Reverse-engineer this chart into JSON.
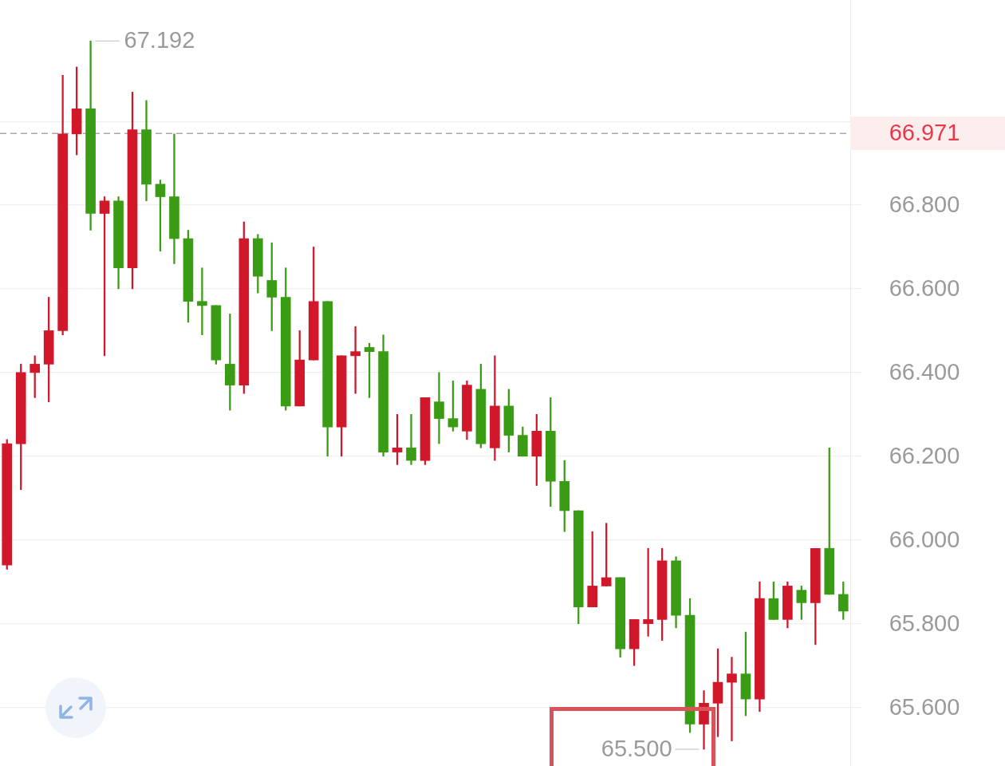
{
  "chart_data": {
    "type": "candlestick",
    "categories": [
      null,
      null,
      null,
      null,
      null,
      null,
      null,
      null,
      null,
      null,
      null,
      null,
      null,
      null,
      null,
      null,
      null,
      null,
      null,
      null,
      null,
      null,
      null,
      null,
      null,
      null,
      null,
      null,
      null,
      null,
      null,
      null,
      null,
      null,
      null,
      null,
      null,
      null,
      null,
      null,
      null,
      null,
      null,
      null,
      null,
      null,
      null,
      null,
      null,
      null,
      null,
      null,
      null,
      null,
      null,
      null,
      null,
      null,
      null,
      null,
      null
    ],
    "ohlc": [
      [
        65.94,
        66.24,
        65.93,
        66.23
      ],
      [
        66.23,
        66.42,
        66.12,
        66.4
      ],
      [
        66.4,
        66.44,
        66.34,
        66.42
      ],
      [
        66.42,
        66.58,
        66.33,
        66.5
      ],
      [
        66.5,
        67.11,
        66.49,
        66.97
      ],
      [
        66.97,
        67.13,
        66.92,
        67.03
      ],
      [
        67.03,
        67.192,
        66.74,
        66.78
      ],
      [
        66.78,
        66.82,
        66.44,
        66.81
      ],
      [
        66.81,
        66.82,
        66.6,
        66.65
      ],
      [
        66.65,
        67.07,
        66.6,
        66.98
      ],
      [
        66.98,
        67.05,
        66.81,
        66.85
      ],
      [
        66.85,
        66.86,
        66.69,
        66.82
      ],
      [
        66.82,
        66.97,
        66.66,
        66.72
      ],
      [
        66.72,
        66.74,
        66.52,
        66.57
      ],
      [
        66.57,
        66.65,
        66.49,
        66.56
      ],
      [
        66.56,
        66.56,
        66.42,
        66.43
      ],
      [
        66.42,
        66.54,
        66.31,
        66.37
      ],
      [
        66.37,
        66.76,
        66.35,
        66.72
      ],
      [
        66.72,
        66.73,
        66.59,
        66.63
      ],
      [
        66.62,
        66.71,
        66.5,
        66.58
      ],
      [
        66.58,
        66.65,
        66.31,
        66.32
      ],
      [
        66.32,
        66.5,
        66.32,
        66.43
      ],
      [
        66.43,
        66.7,
        66.43,
        66.57
      ],
      [
        66.57,
        66.57,
        66.2,
        66.27
      ],
      [
        66.27,
        66.44,
        66.2,
        66.44
      ],
      [
        66.44,
        66.51,
        66.35,
        66.45
      ],
      [
        66.46,
        66.47,
        66.34,
        66.45
      ],
      [
        66.45,
        66.49,
        66.2,
        66.21
      ],
      [
        66.21,
        66.3,
        66.18,
        66.22
      ],
      [
        66.22,
        66.3,
        66.18,
        66.19
      ],
      [
        66.19,
        66.34,
        66.18,
        66.34
      ],
      [
        66.33,
        66.4,
        66.23,
        66.29
      ],
      [
        66.29,
        66.38,
        66.26,
        66.27
      ],
      [
        66.26,
        66.38,
        66.24,
        66.37
      ],
      [
        66.36,
        66.42,
        66.22,
        66.23
      ],
      [
        66.22,
        66.44,
        66.19,
        66.32
      ],
      [
        66.32,
        66.36,
        66.21,
        66.25
      ],
      [
        66.25,
        66.27,
        66.2,
        66.2
      ],
      [
        66.2,
        66.3,
        66.13,
        66.26
      ],
      [
        66.26,
        66.34,
        66.08,
        66.14
      ],
      [
        66.14,
        66.19,
        66.02,
        66.07
      ],
      [
        66.07,
        66.07,
        65.8,
        65.84
      ],
      [
        65.84,
        66.02,
        65.84,
        65.89
      ],
      [
        65.89,
        66.04,
        65.89,
        65.91
      ],
      [
        65.91,
        65.91,
        65.72,
        65.74
      ],
      [
        65.74,
        65.81,
        65.7,
        65.81
      ],
      [
        65.8,
        65.98,
        65.77,
        65.81
      ],
      [
        65.81,
        65.98,
        65.76,
        65.95
      ],
      [
        65.95,
        65.96,
        65.79,
        65.82
      ],
      [
        65.82,
        65.86,
        65.54,
        65.56
      ],
      [
        65.56,
        65.64,
        65.5,
        65.61
      ],
      [
        65.61,
        65.74,
        65.53,
        65.66
      ],
      [
        65.66,
        65.72,
        65.52,
        65.68
      ],
      [
        65.68,
        65.78,
        65.58,
        65.62
      ],
      [
        65.62,
        65.9,
        65.59,
        65.86
      ],
      [
        65.86,
        65.9,
        65.81,
        65.81
      ],
      [
        65.81,
        65.9,
        65.79,
        65.89
      ],
      [
        65.88,
        65.89,
        65.81,
        65.85
      ],
      [
        65.85,
        65.98,
        65.75,
        65.98
      ],
      [
        65.98,
        66.22,
        65.87,
        65.87
      ],
      [
        65.87,
        65.9,
        65.81,
        65.83
      ]
    ],
    "colors": [
      "#d0182a",
      "#d0182a",
      "#d0182a",
      "#d0182a",
      "#d0182a",
      "#d0182a",
      "#3a9c14",
      "#d0182a",
      "#3a9c14",
      "#d0182a",
      "#3a9c14",
      "#3a9c14",
      "#3a9c14",
      "#3a9c14",
      "#3a9c14",
      "#3a9c14",
      "#3a9c14",
      "#d0182a",
      "#3a9c14",
      "#3a9c14",
      "#3a9c14",
      "#d0182a",
      "#d0182a",
      "#3a9c14",
      "#d0182a",
      "#d0182a",
      "#3a9c14",
      "#3a9c14",
      "#d0182a",
      "#3a9c14",
      "#d0182a",
      "#3a9c14",
      "#3a9c14",
      "#d0182a",
      "#3a9c14",
      "#d0182a",
      "#3a9c14",
      "#3a9c14",
      "#d0182a",
      "#3a9c14",
      "#3a9c14",
      "#3a9c14",
      "#d0182a",
      "#d0182a",
      "#3a9c14",
      "#d0182a",
      "#d0182a",
      "#d0182a",
      "#3a9c14",
      "#3a9c14",
      "#d0182a",
      "#d0182a",
      "#d0182a",
      "#3a9c14",
      "#d0182a",
      "#3a9c14",
      "#d0182a",
      "#3a9c14",
      "#d0182a",
      "#3a9c14",
      "#3a9c14"
    ],
    "ylim": [
      65.46,
      67.29
    ],
    "yticks": [
      {
        "value": 65.6,
        "label": "65.600"
      },
      {
        "value": 65.8,
        "label": "65.800"
      },
      {
        "value": 66,
        "label": "66.000"
      },
      {
        "value": 66.2,
        "label": "66.200"
      },
      {
        "value": 66.4,
        "label": "66.400"
      },
      {
        "value": 66.6,
        "label": "66.600"
      },
      {
        "value": 66.8,
        "label": "66.800"
      },
      {
        "value": 67,
        "label": null
      }
    ],
    "tick_labels": "y",
    "grid": "y",
    "ref_lines": [
      {
        "axis": "y",
        "value": 66.971,
        "label": "66.971",
        "color": "#a8a8a8",
        "line_style": "dashed"
      }
    ],
    "annotations": [
      "67.192",
      "65.500"
    ]
  }
}
